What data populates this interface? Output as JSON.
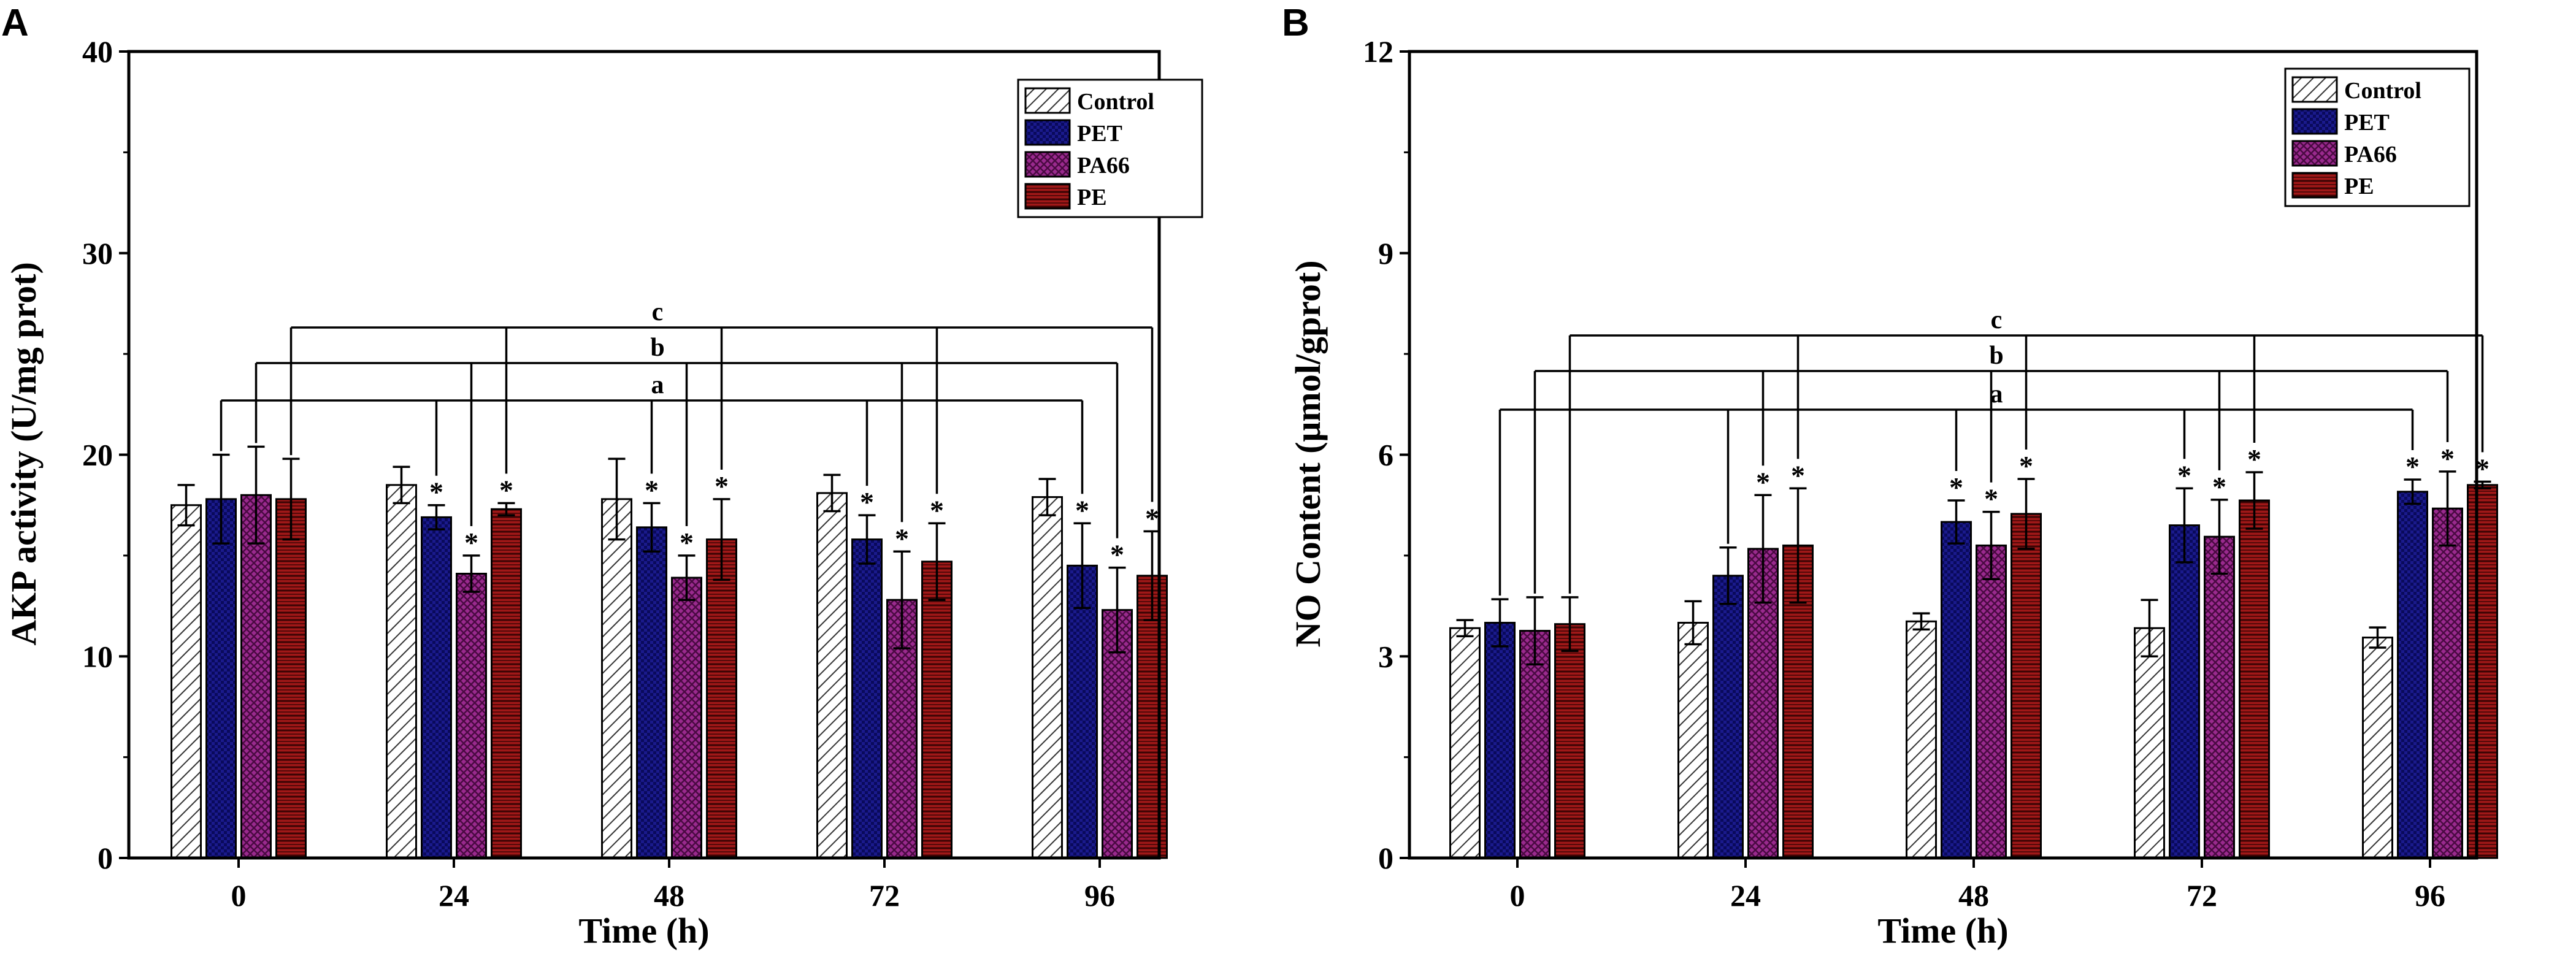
{
  "chart_data": [
    {
      "panel": "A",
      "type": "bar",
      "title": "",
      "xlabel": "Time (h)",
      "ylabel": "AKP activity (U/mg prot)",
      "ylim": [
        0,
        40
      ],
      "yticks": [
        "0",
        "10",
        "20",
        "30",
        "40"
      ],
      "categories": [
        "0",
        "24",
        "48",
        "72",
        "96"
      ],
      "legend_position": "top-right",
      "series": [
        {
          "name": "Control",
          "values": [
            17.5,
            18.5,
            17.8,
            18.1,
            17.9
          ],
          "errors": [
            1.0,
            0.9,
            2.0,
            0.9,
            0.9
          ],
          "sig": [
            "",
            "",
            "",
            "",
            ""
          ]
        },
        {
          "name": "PET",
          "values": [
            17.8,
            16.9,
            16.4,
            15.8,
            14.5
          ],
          "errors": [
            2.2,
            0.6,
            1.2,
            1.2,
            2.1
          ],
          "sig": [
            "",
            "*",
            "*",
            "*",
            "*"
          ]
        },
        {
          "name": "PA66",
          "values": [
            18.0,
            14.1,
            13.9,
            12.8,
            12.3
          ],
          "errors": [
            2.4,
            0.9,
            1.1,
            2.4,
            2.1
          ],
          "sig": [
            "",
            "*",
            "*",
            "*",
            "*"
          ]
        },
        {
          "name": "PE",
          "values": [
            17.8,
            17.3,
            15.8,
            14.7,
            14.0
          ],
          "errors": [
            2.0,
            0.3,
            2.0,
            1.9,
            2.2
          ],
          "sig": [
            "",
            "*",
            "*",
            "*",
            "*"
          ]
        }
      ],
      "significance_labels": [
        "a",
        "b",
        "c"
      ]
    },
    {
      "panel": "B",
      "type": "bar",
      "title": "",
      "xlabel": "Time (h)",
      "ylabel": "NO Content (μmol/gprot)",
      "ylim": [
        0,
        12
      ],
      "yticks": [
        "0",
        "3",
        "6",
        "9",
        "12"
      ],
      "categories": [
        "0",
        "24",
        "48",
        "72",
        "96"
      ],
      "legend_position": "top-right",
      "series": [
        {
          "name": "Control",
          "values": [
            3.42,
            3.5,
            3.52,
            3.42,
            3.28
          ],
          "errors": [
            0.12,
            0.32,
            0.12,
            0.42,
            0.15
          ],
          "sig": [
            "",
            "",
            "",
            "",
            ""
          ]
        },
        {
          "name": "PET",
          "values": [
            3.5,
            4.2,
            5.0,
            4.95,
            5.45
          ],
          "errors": [
            0.35,
            0.42,
            0.32,
            0.55,
            0.18
          ],
          "sig": [
            "",
            "",
            "*",
            "*",
            "*"
          ]
        },
        {
          "name": "PA66",
          "values": [
            3.38,
            4.6,
            4.65,
            4.78,
            5.2
          ],
          "errors": [
            0.5,
            0.8,
            0.5,
            0.55,
            0.55
          ],
          "sig": [
            "",
            "*",
            "*",
            "*",
            "*"
          ]
        },
        {
          "name": "PE",
          "values": [
            3.48,
            4.65,
            5.12,
            5.32,
            5.55
          ],
          "errors": [
            0.4,
            0.85,
            0.52,
            0.42,
            0.05
          ],
          "sig": [
            "",
            "*",
            "*",
            "*",
            "*"
          ]
        }
      ],
      "significance_labels": [
        "a",
        "b",
        "c"
      ]
    }
  ],
  "colors": {
    "control_fill": "#ffffff",
    "pet_fill": "#14147a",
    "pa66_fill": "#8a1a7e",
    "pe_fill": "#8e1414",
    "axis": "#000000"
  }
}
